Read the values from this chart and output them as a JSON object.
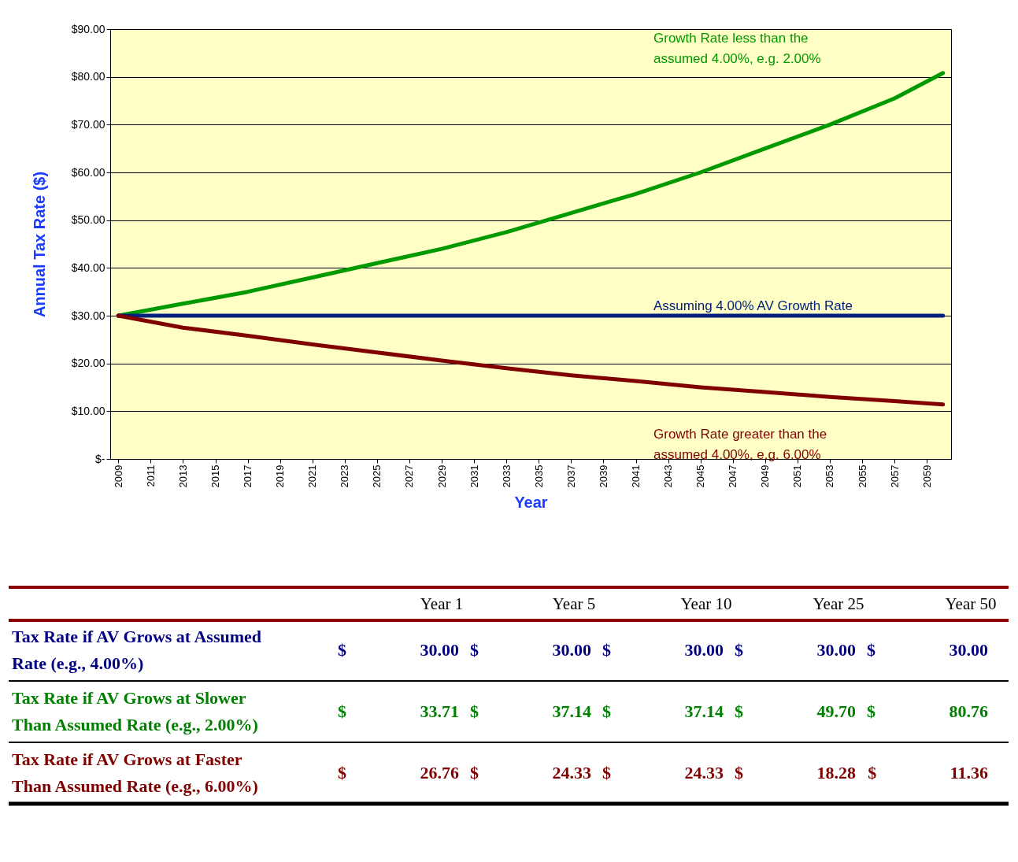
{
  "chart_data": [
    {
      "type": "line",
      "xlabel": "Year",
      "ylabel": "Annual Tax Rate ($)",
      "xlim": [
        2008.5,
        2060.5
      ],
      "xticks": [
        2009,
        2011,
        2013,
        2015,
        2017,
        2019,
        2021,
        2023,
        2025,
        2027,
        2029,
        2031,
        2033,
        2035,
        2037,
        2039,
        2041,
        2043,
        2045,
        2047,
        2049,
        2051,
        2053,
        2055,
        2057,
        2059
      ],
      "ylim": [
        0,
        90
      ],
      "yticks": [
        {
          "value": 0,
          "label": "$-"
        },
        {
          "value": 10,
          "label": "$10.00"
        },
        {
          "value": 20,
          "label": "$20.00"
        },
        {
          "value": 30,
          "label": "$30.00"
        },
        {
          "value": 40,
          "label": "$40.00"
        },
        {
          "value": 50,
          "label": "$50.00"
        },
        {
          "value": 60,
          "label": "$60.00"
        },
        {
          "value": 70,
          "label": "$70.00"
        },
        {
          "value": 80,
          "label": "$80.00"
        },
        {
          "value": 90,
          "label": "$90.00"
        }
      ],
      "grid": "y",
      "series": [
        {
          "color": "#009900",
          "x": [
            2009,
            2013,
            2017,
            2021,
            2025,
            2029,
            2033,
            2037,
            2041,
            2045,
            2049,
            2053,
            2057,
            2060
          ],
          "values": [
            30,
            32.5,
            35,
            38,
            41,
            44,
            47.5,
            51.5,
            55.5,
            60,
            65,
            70,
            75.5,
            80.8
          ]
        },
        {
          "color": "#002080",
          "x": [
            2009,
            2060
          ],
          "values": [
            30,
            30
          ]
        },
        {
          "color": "#800000",
          "x": [
            2009,
            2013,
            2017,
            2021,
            2025,
            2029,
            2033,
            2037,
            2041,
            2045,
            2049,
            2053,
            2057,
            2060
          ],
          "values": [
            30,
            27.5,
            25.8,
            24,
            22.3,
            20.6,
            19,
            17.5,
            16.3,
            15,
            14,
            13,
            12.1,
            11.4
          ]
        }
      ],
      "annotations": [
        "Growth Rate less than the\nassumed 4.00%, e.g. 2.00%",
        "Assuming 4.00% AV Growth Rate",
        "Growth Rate greater than the\nassumed 4.00%, e.g. 6.00%"
      ]
    },
    {
      "type": "other",
      "categories": [
        "Year 1",
        "Year 5",
        "Year 10",
        "Year 25",
        "Year 50"
      ],
      "series": [
        {
          "name": "Tax Rate if AV Grows at Assumed Rate (e.g., 4.00%)",
          "color": "#000080",
          "values": [
            30,
            30,
            30,
            30,
            30
          ],
          "value_labels": [
            "$ 30.00",
            "$ 30.00",
            "$ 30.00",
            "$ 30.00",
            "$ 30.00"
          ]
        },
        {
          "name": "Tax Rate if AV Grows at Slower Than Assumed Rate (e.g., 2.00%)",
          "color": "#008000",
          "values": [
            33.71,
            37.14,
            37.14,
            49.7,
            80.76
          ],
          "value_labels": [
            "$ 33.71",
            "$ 37.14",
            "$ 37.14",
            "$ 49.70",
            "$ 80.76"
          ]
        },
        {
          "name": "Tax Rate if AV Grows at Faster Than Assumed Rate (e.g., 6.00%)",
          "color": "#800000",
          "values": [
            26.76,
            24.33,
            24.33,
            18.28,
            11.36
          ],
          "value_labels": [
            "$ 26.76",
            "$ 24.33",
            "$ 24.33",
            "$ 18.28",
            "$ 11.36"
          ]
        }
      ]
    }
  ]
}
